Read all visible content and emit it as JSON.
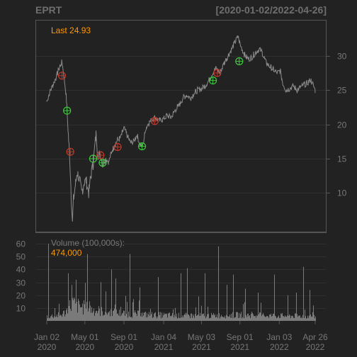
{
  "chart_data": {
    "type": "line",
    "symbol": "EPRT",
    "date_range": "[2020-01-02/2022-04-26]",
    "last_label": "Last 24.93",
    "volume_label": "Volume (100,000s):",
    "volume_value": "474,000",
    "x_ticks": [
      {
        "date": "2020-01-02",
        "line1": "Jan 02",
        "line2": "2020"
      },
      {
        "date": "2020-05-01",
        "line1": "May 01",
        "line2": "2020"
      },
      {
        "date": "2020-09-01",
        "line1": "Sep 01",
        "line2": "2020"
      },
      {
        "date": "2021-01-04",
        "line1": "Jan 04",
        "line2": "2021"
      },
      {
        "date": "2021-05-03",
        "line1": "May 03",
        "line2": "2021"
      },
      {
        "date": "2021-09-01",
        "line1": "Sep 01",
        "line2": "2021"
      },
      {
        "date": "2022-01-03",
        "line1": "Jan 03",
        "line2": "2022"
      },
      {
        "date": "2022-04-26",
        "line1": "Apr 26",
        "line2": "2022"
      }
    ],
    "price_axis": {
      "ticks": [
        10,
        15,
        20,
        25,
        30
      ],
      "range": [
        5.5,
        34.0
      ]
    },
    "volume_axis": {
      "ticks": [
        10,
        20,
        30,
        40,
        50,
        60
      ],
      "range": [
        0,
        65
      ]
    },
    "price_series": [
      [
        "2020-01-02",
        23.3
      ],
      [
        "2020-01-10",
        24.5
      ],
      [
        "2020-01-22",
        25.8
      ],
      [
        "2020-02-03",
        27.2
      ],
      [
        "2020-02-12",
        28.5
      ],
      [
        "2020-02-19",
        29.1
      ],
      [
        "2020-02-24",
        27.4
      ],
      [
        "2020-03-02",
        24.8
      ],
      [
        "2020-03-06",
        22.0
      ],
      [
        "2020-03-10",
        18.5
      ],
      [
        "2020-03-13",
        16.0
      ],
      [
        "2020-03-17",
        12.5
      ],
      [
        "2020-03-19",
        9.5
      ],
      [
        "2020-03-23",
        6.0
      ],
      [
        "2020-03-26",
        9.0
      ],
      [
        "2020-03-31",
        10.8
      ],
      [
        "2020-04-07",
        13.0
      ],
      [
        "2020-04-14",
        12.0
      ],
      [
        "2020-04-21",
        10.0
      ],
      [
        "2020-04-28",
        11.5
      ],
      [
        "2020-05-05",
        11.8
      ],
      [
        "2020-05-13",
        10.0
      ],
      [
        "2020-05-20",
        12.5
      ],
      [
        "2020-05-27",
        14.2
      ],
      [
        "2020-06-05",
        18.5
      ],
      [
        "2020-06-12",
        15.2
      ],
      [
        "2020-06-19",
        15.8
      ],
      [
        "2020-06-26",
        14.2
      ],
      [
        "2020-07-06",
        15.0
      ],
      [
        "2020-07-15",
        14.5
      ],
      [
        "2020-07-24",
        16.0
      ],
      [
        "2020-08-03",
        17.0
      ],
      [
        "2020-08-12",
        17.8
      ],
      [
        "2020-08-21",
        18.0
      ],
      [
        "2020-09-01",
        19.5
      ],
      [
        "2020-09-10",
        18.5
      ],
      [
        "2020-09-21",
        17.3
      ],
      [
        "2020-10-01",
        17.5
      ],
      [
        "2020-10-12",
        18.5
      ],
      [
        "2020-10-22",
        17.0
      ],
      [
        "2020-10-30",
        16.8
      ],
      [
        "2020-11-09",
        19.5
      ],
      [
        "2020-11-18",
        20.2
      ],
      [
        "2020-11-30",
        20.8
      ],
      [
        "2020-12-10",
        21.0
      ],
      [
        "2020-12-21",
        20.5
      ],
      [
        "2021-01-04",
        20.8
      ],
      [
        "2021-01-14",
        21.3
      ],
      [
        "2021-01-27",
        21.0
      ],
      [
        "2021-02-08",
        22.0
      ],
      [
        "2021-02-22",
        22.8
      ],
      [
        "2021-03-05",
        23.8
      ],
      [
        "2021-03-17",
        24.3
      ],
      [
        "2021-03-29",
        23.8
      ],
      [
        "2021-04-09",
        24.5
      ],
      [
        "2021-04-21",
        25.0
      ],
      [
        "2021-05-03",
        25.2
      ],
      [
        "2021-05-14",
        25.6
      ],
      [
        "2021-05-26",
        26.4
      ],
      [
        "2021-06-07",
        27.5
      ],
      [
        "2021-06-18",
        28.2
      ],
      [
        "2021-06-30",
        27.5
      ],
      [
        "2021-07-12",
        28.8
      ],
      [
        "2021-07-23",
        29.8
      ],
      [
        "2021-08-04",
        30.8
      ],
      [
        "2021-08-17",
        32.0
      ],
      [
        "2021-08-26",
        32.8
      ],
      [
        "2021-09-03",
        31.5
      ],
      [
        "2021-09-15",
        30.2
      ],
      [
        "2021-09-27",
        29.5
      ],
      [
        "2021-10-08",
        29.8
      ],
      [
        "2021-10-20",
        30.5
      ],
      [
        "2021-11-01",
        31.0
      ],
      [
        "2021-11-10",
        30.5
      ],
      [
        "2021-11-22",
        29.0
      ],
      [
        "2021-12-03",
        28.5
      ],
      [
        "2021-12-15",
        28.0
      ],
      [
        "2021-12-28",
        27.5
      ],
      [
        "2022-01-06",
        27.8
      ],
      [
        "2022-01-14",
        26.0
      ],
      [
        "2022-01-24",
        25.0
      ],
      [
        "2022-02-04",
        25.2
      ],
      [
        "2022-02-16",
        25.6
      ],
      [
        "2022-02-28",
        25.0
      ],
      [
        "2022-03-10",
        25.4
      ],
      [
        "2022-03-22",
        25.8
      ],
      [
        "2022-04-01",
        26.0
      ],
      [
        "2022-04-12",
        26.5
      ],
      [
        "2022-04-19",
        25.8
      ],
      [
        "2022-04-26",
        24.93
      ]
    ],
    "volume_profile": [
      [
        "2020-01-02",
        3
      ],
      [
        "2020-02-15",
        4
      ],
      [
        "2020-03-01",
        6
      ],
      [
        "2020-03-20",
        12
      ],
      [
        "2020-04-10",
        10
      ],
      [
        "2020-05-15",
        8
      ],
      [
        "2020-07-01",
        6
      ],
      [
        "2020-09-01",
        5
      ],
      [
        "2020-12-01",
        4
      ],
      [
        "2021-03-01",
        3.5
      ],
      [
        "2021-06-01",
        3.5
      ],
      [
        "2021-09-01",
        4
      ],
      [
        "2022-01-01",
        3.5
      ],
      [
        "2022-04-26",
        3
      ]
    ],
    "volume_spikes": [
      [
        "2020-01-06",
        60
      ],
      [
        "2020-03-09",
        37
      ],
      [
        "2020-03-20",
        28
      ],
      [
        "2020-04-03",
        32
      ],
      [
        "2020-05-08",
        52
      ],
      [
        "2020-06-19",
        30
      ],
      [
        "2020-07-22",
        40
      ],
      [
        "2020-08-06",
        33
      ],
      [
        "2020-09-18",
        52
      ],
      [
        "2020-10-21",
        26
      ],
      [
        "2020-12-18",
        34
      ],
      [
        "2021-02-26",
        37
      ],
      [
        "2021-03-19",
        41
      ],
      [
        "2021-04-23",
        19
      ],
      [
        "2021-05-14",
        37
      ],
      [
        "2021-06-25",
        58
      ],
      [
        "2021-07-21",
        28
      ],
      [
        "2021-08-10",
        36
      ],
      [
        "2021-09-17",
        25
      ],
      [
        "2021-10-28",
        22
      ],
      [
        "2021-12-17",
        36
      ],
      [
        "2022-01-28",
        20
      ],
      [
        "2022-02-25",
        22
      ],
      [
        "2022-03-18",
        42
      ],
      [
        "2022-04-08",
        24
      ]
    ],
    "markers": [
      {
        "date": "2020-02-19",
        "price": 27.1,
        "color": "#c0392b"
      },
      {
        "date": "2020-03-06",
        "price": 22.0,
        "color": "#3ec93e"
      },
      {
        "date": "2020-03-16",
        "price": 16.0,
        "color": "#c0392b"
      },
      {
        "date": "2020-05-27",
        "price": 15.0,
        "color": "#3ec93e"
      },
      {
        "date": "2020-06-19",
        "price": 15.5,
        "color": "#c0392b"
      },
      {
        "date": "2020-06-26",
        "price": 14.4,
        "color": "#3ec93e"
      },
      {
        "date": "2020-08-12",
        "price": 16.7,
        "color": "#c0392b"
      },
      {
        "date": "2020-10-28",
        "price": 16.8,
        "color": "#3ec93e"
      },
      {
        "date": "2020-12-07",
        "price": 20.5,
        "color": "#c0392b"
      },
      {
        "date": "2021-06-08",
        "price": 26.4,
        "color": "#3ec93e"
      },
      {
        "date": "2021-06-22",
        "price": 27.5,
        "color": "#c0392b"
      },
      {
        "date": "2021-08-30",
        "price": 29.2,
        "color": "#3ec93e"
      }
    ],
    "colors": {
      "background": "#222222",
      "panel_border": "#555555",
      "grid": "#2f2f2f",
      "price_line": "#8a8a8a",
      "volume_bar": "#7a7a7a",
      "title": "#6e6e6e",
      "last_label": "#ff9900",
      "volume_value": "#ff9900",
      "volume_label": "#777777"
    }
  }
}
